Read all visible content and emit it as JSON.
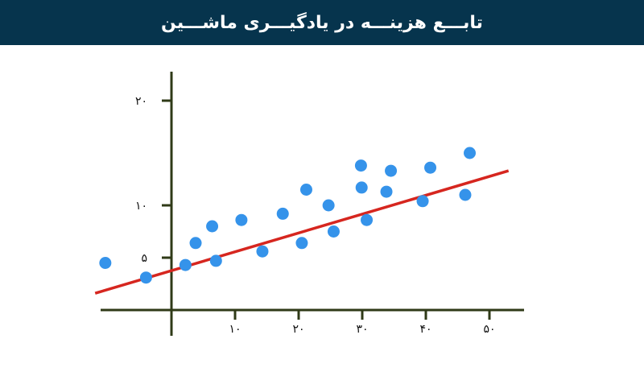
{
  "header": {
    "title": "تابـــع هزینـــه در یادگیـــری ماشـــین"
  },
  "colors": {
    "header_bg": "#06344d",
    "axis": "#2f3a17",
    "points": "#3593ea",
    "regression_line": "#d6261f"
  },
  "chart_data": {
    "type": "scatter",
    "title": "",
    "xlabel": "",
    "ylabel": "",
    "xlim": [
      -10,
      53
    ],
    "ylim": [
      -2,
      23
    ],
    "x_ticks": [
      {
        "value": 10,
        "label": "۱۰"
      },
      {
        "value": 20,
        "label": "۲۰"
      },
      {
        "value": 30,
        "label": "۳۰"
      },
      {
        "value": 40,
        "label": "۴۰"
      },
      {
        "value": 50,
        "label": "۵۰"
      }
    ],
    "y_ticks": [
      {
        "value": 5,
        "label": "۵"
      },
      {
        "value": 10,
        "label": "۱۰"
      },
      {
        "value": 20,
        "label": "۲۰"
      }
    ],
    "points": [
      {
        "x": -10.4,
        "y": 4.5
      },
      {
        "x": -4.0,
        "y": 3.1
      },
      {
        "x": 2.2,
        "y": 4.3
      },
      {
        "x": 3.8,
        "y": 6.4
      },
      {
        "x": 6.4,
        "y": 8.0
      },
      {
        "x": 7.0,
        "y": 4.7
      },
      {
        "x": 11.0,
        "y": 8.6
      },
      {
        "x": 14.3,
        "y": 5.6
      },
      {
        "x": 17.5,
        "y": 9.2
      },
      {
        "x": 20.5,
        "y": 6.4
      },
      {
        "x": 21.2,
        "y": 11.5
      },
      {
        "x": 24.7,
        "y": 10.0
      },
      {
        "x": 25.5,
        "y": 7.5
      },
      {
        "x": 29.8,
        "y": 13.8
      },
      {
        "x": 29.9,
        "y": 11.7
      },
      {
        "x": 30.7,
        "y": 8.6
      },
      {
        "x": 33.8,
        "y": 11.3
      },
      {
        "x": 34.5,
        "y": 13.3
      },
      {
        "x": 39.5,
        "y": 10.4
      },
      {
        "x": 40.7,
        "y": 13.6
      },
      {
        "x": 46.2,
        "y": 11.0
      },
      {
        "x": 46.9,
        "y": 15.0
      }
    ],
    "regression_line": {
      "x": [
        -12,
        53
      ],
      "y": [
        1.6,
        13.3
      ]
    }
  }
}
